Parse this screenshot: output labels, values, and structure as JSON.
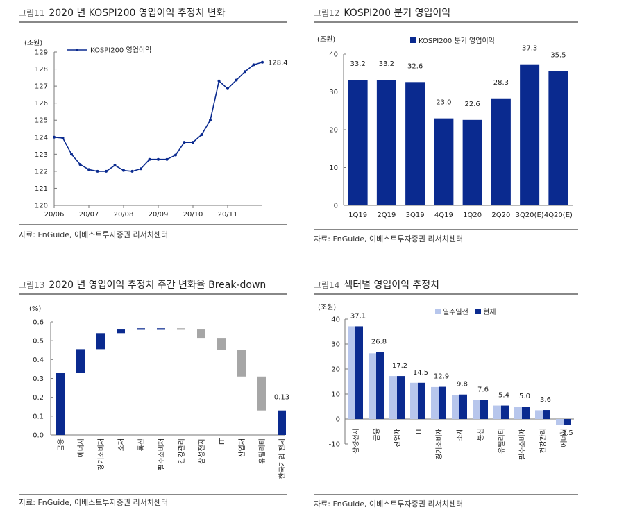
{
  "colors": {
    "navy": "#0a2a8f",
    "light": "#b7c6ec",
    "gray": "#a6a6a6",
    "axis": "#777777"
  },
  "charts": [
    {
      "num": "그림11",
      "title": "2020 년 KOSPI200 영업이익 추정치 변화",
      "source": "자료: FnGuide, 이베스트투자증권 리서치센터",
      "chart_data": {
        "type": "line",
        "title": "2020 년 KOSPI200 영업이익 추정치 변화",
        "unit": "(조원)",
        "legend": "KOSPI200 영업이익",
        "legend_position": "top-left",
        "ylim": [
          120,
          129
        ],
        "yticks": [
          "120",
          "121",
          "122",
          "123",
          "124",
          "125",
          "126",
          "127",
          "128",
          "129"
        ],
        "xticks": [
          "20/06",
          "20/07",
          "20/08",
          "20/09",
          "20/10",
          "20/11"
        ],
        "values": [
          124.0,
          123.95,
          123.0,
          122.4,
          122.1,
          122.0,
          122.0,
          122.35,
          122.05,
          122.0,
          122.15,
          122.7,
          122.7,
          122.7,
          122.95,
          123.7,
          123.7,
          124.15,
          125.0,
          127.3,
          126.85,
          127.35,
          127.85,
          128.25,
          128.4
        ],
        "last_label": "128.4"
      }
    },
    {
      "num": "그림12",
      "title": "KOSPI200 분기 영업이익",
      "source": "자료: FnGuide, 이베스트투자증권 리서치센터",
      "chart_data": {
        "type": "bar",
        "title": "KOSPI200 분기 영업이익",
        "unit": "(조원)",
        "legend": "KOSPI200 분기 영업이익",
        "legend_position": "top",
        "ylim": [
          0,
          40
        ],
        "yticks": [
          "0",
          "10",
          "20",
          "30",
          "40"
        ],
        "categories": [
          "1Q19",
          "2Q19",
          "3Q19",
          "4Q19",
          "1Q20",
          "2Q20",
          "3Q20(E)",
          "4Q20(E)"
        ],
        "values": [
          33.2,
          33.2,
          32.6,
          23.0,
          22.6,
          28.3,
          37.3,
          35.5
        ],
        "labels": [
          "33.2",
          "33.2",
          "32.6",
          "23.0",
          "22.6",
          "28.3",
          "37.3",
          "35.5"
        ]
      }
    },
    {
      "num": "그림13",
      "title": "2020 년 영업이익 추정치 주간 변화율 Break-down",
      "source": "자료: FnGuide, 이베스트투자증권 리서치센터",
      "chart_data": {
        "type": "bar",
        "subtype": "waterfall",
        "title": "2020 년 영업이익 추정치 주간 변화율 Break-down",
        "unit": "(%)",
        "ylim": [
          0.0,
          0.6
        ],
        "yticks": [
          "0.0",
          "0.1",
          "0.2",
          "0.3",
          "0.4",
          "0.5",
          "0.6"
        ],
        "categories": [
          "금융",
          "에너지",
          "경기소비재",
          "소재",
          "통신",
          "필수소비재",
          "건강관리",
          "삼성전자",
          "IT",
          "산업재",
          "유틸리티",
          "한국기업 전체"
        ],
        "low": [
          0.0,
          0.33,
          0.455,
          0.54,
          0.563,
          0.566,
          0.563,
          0.515,
          0.45,
          0.31,
          0.13,
          0.0
        ],
        "high": [
          0.33,
          0.455,
          0.54,
          0.563,
          0.566,
          0.566,
          0.566,
          0.563,
          0.515,
          0.45,
          0.31,
          0.13
        ],
        "direction": [
          "up",
          "up",
          "up",
          "up",
          "up",
          "neutral",
          "down",
          "down",
          "down",
          "down",
          "down",
          "total"
        ],
        "total_label": "0.13"
      }
    },
    {
      "num": "그림14",
      "title": "섹터별 영업이익 추정치",
      "source": "자료: FnGuide, 이베스트투자증권 리서치센터",
      "chart_data": {
        "type": "bar",
        "title": "섹터별 영업이익 추정치",
        "unit": "(조원)",
        "legend_position": "top",
        "ylim": [
          -10,
          40
        ],
        "yticks": [
          "-10",
          "0",
          "10",
          "20",
          "30",
          "40"
        ],
        "categories": [
          "삼성전자",
          "금융",
          "산업재",
          "IT",
          "경기소비재",
          "소재",
          "통신",
          "유틸리티",
          "필수소비재",
          "건강관리",
          "에너지"
        ],
        "series": [
          {
            "name": "일주일전",
            "values": [
              37.1,
              26.3,
              17.2,
              14.5,
              12.8,
              9.6,
              7.5,
              5.4,
              5.0,
              3.5,
              -2.4
            ]
          },
          {
            "name": "현재",
            "values": [
              37.1,
              26.8,
              17.2,
              14.5,
              12.9,
              9.8,
              7.6,
              5.4,
              5.0,
              3.6,
              -2.5
            ]
          }
        ],
        "labels": [
          "37.1",
          "26.8",
          "17.2",
          "14.5",
          "12.9",
          "9.8",
          "7.6",
          "5.4",
          "5.0",
          "3.6",
          "-2.5"
        ]
      }
    }
  ]
}
